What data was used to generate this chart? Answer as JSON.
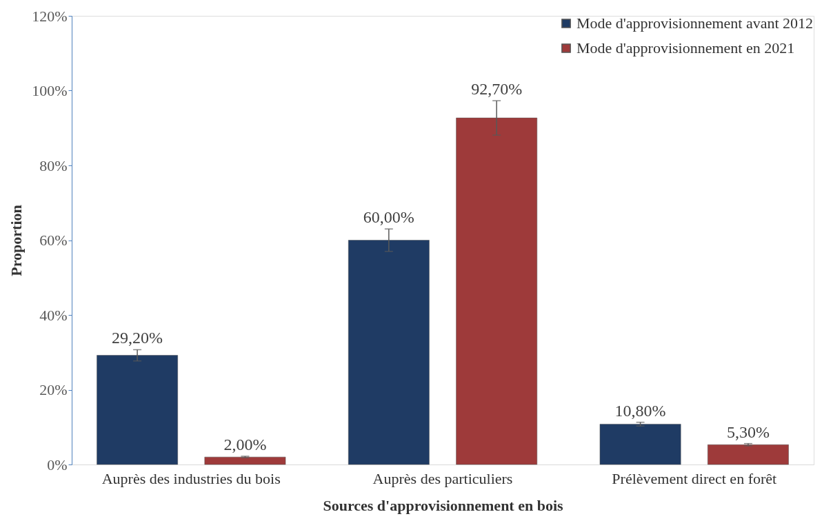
{
  "chart_data": {
    "type": "bar",
    "xlabel": "Sources d'approvisionnement en bois",
    "ylabel": "Proportion",
    "categories": [
      "Auprès des industries du bois",
      "Auprès des particuliers",
      "Prélèvement direct en forêt"
    ],
    "series": [
      {
        "name": "Mode d'approvisionnement avant 2012",
        "color": "#1f3b64",
        "values": [
          29.2,
          60.0,
          10.8
        ],
        "errors": [
          1.5,
          3,
          0.5
        ],
        "value_labels": [
          "29,20%",
          "60,00%",
          "10,80%"
        ]
      },
      {
        "name": "Mode d'approvisionnement en 2021",
        "color": "#9e3a3a",
        "values": [
          2.0,
          92.7,
          5.3
        ],
        "errors": [
          0.2,
          4.6,
          0.3
        ],
        "value_labels": [
          "2,00%",
          "92,70%",
          "5,30%"
        ]
      }
    ],
    "ylim": [
      0,
      120
    ],
    "yticks": [
      {
        "value": 0,
        "label": "0%"
      },
      {
        "value": 20,
        "label": "20%"
      },
      {
        "value": 40,
        "label": "40%"
      },
      {
        "value": 60,
        "label": "60%"
      },
      {
        "value": 80,
        "label": "80%"
      },
      {
        "value": 100,
        "label": "100%"
      },
      {
        "value": 120,
        "label": "120%"
      }
    ],
    "grid": false,
    "legend": "top right"
  }
}
